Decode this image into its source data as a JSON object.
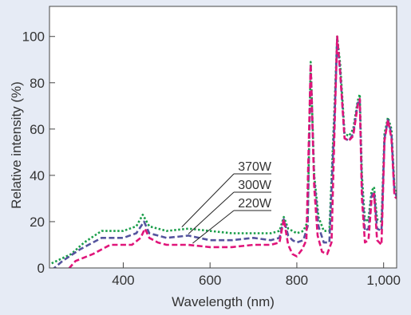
{
  "chart_data": {
    "type": "line",
    "title": "",
    "xlabel": "Wavelength (nm)",
    "ylabel": "Relative intensity (%)",
    "xlim": [
      230,
      1030
    ],
    "ylim": [
      0,
      113
    ],
    "x_ticks": [
      400,
      600,
      800,
      1000
    ],
    "x_tick_labels": [
      "400",
      "600",
      "800",
      "1,000"
    ],
    "y_ticks": [
      0,
      20,
      40,
      60,
      80,
      100
    ],
    "y_tick_labels": [
      "0",
      "20",
      "40",
      "60",
      "80",
      "100"
    ],
    "grid": false,
    "legend": "annotations",
    "background_color": "#e6ebf5",
    "plot_background_color": "#ffffff",
    "series": [
      {
        "name": "370W",
        "color": "#1a9e4a",
        "dash": "dotted",
        "points": [
          [
            235,
            2
          ],
          [
            280,
            6
          ],
          [
            310,
            11
          ],
          [
            350,
            16
          ],
          [
            400,
            16
          ],
          [
            430,
            18
          ],
          [
            445,
            23
          ],
          [
            460,
            18
          ],
          [
            480,
            17
          ],
          [
            500,
            16
          ],
          [
            550,
            17
          ],
          [
            600,
            16
          ],
          [
            650,
            15
          ],
          [
            700,
            15
          ],
          [
            740,
            15
          ],
          [
            760,
            16
          ],
          [
            770,
            22
          ],
          [
            780,
            17
          ],
          [
            790,
            16
          ],
          [
            800,
            15
          ],
          [
            815,
            16
          ],
          [
            825,
            20
          ],
          [
            832,
            89
          ],
          [
            840,
            40
          ],
          [
            850,
            22
          ],
          [
            862,
            16
          ],
          [
            875,
            16
          ],
          [
            887,
            70
          ],
          [
            893,
            100
          ],
          [
            900,
            88
          ],
          [
            910,
            58
          ],
          [
            920,
            57
          ],
          [
            930,
            60
          ],
          [
            940,
            72
          ],
          [
            945,
            75
          ],
          [
            950,
            40
          ],
          [
            957,
            20
          ],
          [
            965,
            21
          ],
          [
            972,
            33
          ],
          [
            978,
            35
          ],
          [
            985,
            21
          ],
          [
            995,
            20
          ],
          [
            1002,
            58
          ],
          [
            1010,
            65
          ],
          [
            1018,
            60
          ],
          [
            1025,
            35
          ],
          [
            1030,
            33
          ]
        ]
      },
      {
        "name": "300W",
        "color": "#55549e",
        "dash": "dashed",
        "points": [
          [
            235,
            -1
          ],
          [
            260,
            3
          ],
          [
            300,
            8
          ],
          [
            350,
            13
          ],
          [
            400,
            13
          ],
          [
            430,
            15
          ],
          [
            448,
            20
          ],
          [
            460,
            15
          ],
          [
            480,
            14
          ],
          [
            500,
            13
          ],
          [
            550,
            14
          ],
          [
            600,
            12
          ],
          [
            650,
            12
          ],
          [
            700,
            13
          ],
          [
            740,
            12
          ],
          [
            760,
            13
          ],
          [
            770,
            21
          ],
          [
            780,
            14
          ],
          [
            790,
            12
          ],
          [
            800,
            11
          ],
          [
            815,
            12
          ],
          [
            825,
            18
          ],
          [
            832,
            88
          ],
          [
            840,
            38
          ],
          [
            850,
            18
          ],
          [
            862,
            11
          ],
          [
            875,
            11
          ],
          [
            887,
            65
          ],
          [
            893,
            99
          ],
          [
            900,
            85
          ],
          [
            910,
            56
          ],
          [
            920,
            55
          ],
          [
            930,
            58
          ],
          [
            940,
            71
          ],
          [
            945,
            73
          ],
          [
            950,
            35
          ],
          [
            957,
            16
          ],
          [
            965,
            17
          ],
          [
            972,
            31
          ],
          [
            978,
            33
          ],
          [
            985,
            17
          ],
          [
            995,
            16
          ],
          [
            1002,
            56
          ],
          [
            1010,
            64
          ],
          [
            1018,
            58
          ],
          [
            1025,
            33
          ],
          [
            1030,
            31
          ]
        ]
      },
      {
        "name": "220W",
        "color": "#e0157a",
        "dash": "dashed",
        "points": [
          [
            262,
            -3
          ],
          [
            290,
            3
          ],
          [
            330,
            6
          ],
          [
            370,
            10
          ],
          [
            420,
            10
          ],
          [
            440,
            13
          ],
          [
            450,
            17
          ],
          [
            460,
            13
          ],
          [
            480,
            11
          ],
          [
            500,
            10
          ],
          [
            550,
            10
          ],
          [
            600,
            9
          ],
          [
            650,
            9
          ],
          [
            700,
            10
          ],
          [
            740,
            10
          ],
          [
            760,
            11
          ],
          [
            770,
            21
          ],
          [
            780,
            10
          ],
          [
            790,
            6
          ],
          [
            800,
            5
          ],
          [
            812,
            8
          ],
          [
            822,
            12
          ],
          [
            832,
            88
          ],
          [
            840,
            35
          ],
          [
            848,
            14
          ],
          [
            858,
            7
          ],
          [
            870,
            6
          ],
          [
            880,
            11
          ],
          [
            887,
            60
          ],
          [
            893,
            100
          ],
          [
            900,
            84
          ],
          [
            910,
            56
          ],
          [
            920,
            55
          ],
          [
            930,
            57
          ],
          [
            940,
            70
          ],
          [
            945,
            73
          ],
          [
            950,
            30
          ],
          [
            957,
            11
          ],
          [
            965,
            12
          ],
          [
            972,
            29
          ],
          [
            978,
            32
          ],
          [
            985,
            12
          ],
          [
            995,
            10
          ],
          [
            1002,
            55
          ],
          [
            1010,
            64
          ],
          [
            1018,
            56
          ],
          [
            1025,
            31
          ],
          [
            1030,
            30
          ]
        ]
      }
    ],
    "annotations": [
      {
        "text": "370W",
        "series": "370W",
        "point": [
          535,
          17
        ]
      },
      {
        "text": "300W",
        "series": "300W",
        "point": [
          550,
          14
        ]
      },
      {
        "text": "220W",
        "series": "220W",
        "point": [
          560,
          10
        ]
      }
    ]
  }
}
